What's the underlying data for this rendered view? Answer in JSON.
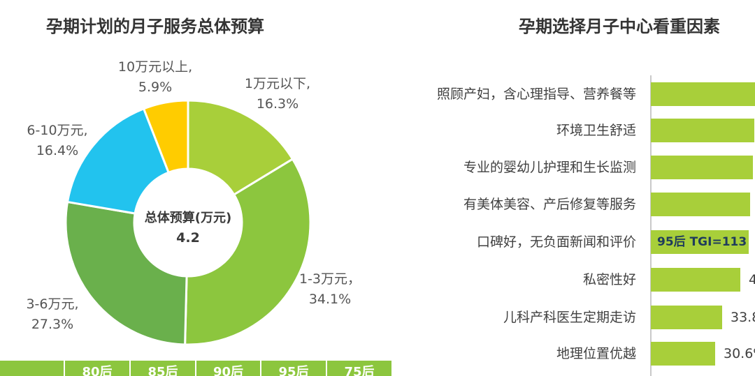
{
  "chart_data": [
    {
      "type": "pie",
      "title": "孕期计划的月子服务总体预算",
      "center_label": "总体预算(万元)",
      "center_value": "4.2",
      "slices": [
        {
          "name": "1万元以下,",
          "value": 16.3,
          "value_label": "16.3%",
          "color": "#a8cf3a"
        },
        {
          "name": "1-3万元，",
          "value": 34.1,
          "value_label": "34.1%",
          "color": "#8cc63e"
        },
        {
          "name": "3-6万元,",
          "value": 27.3,
          "value_label": "27.3%",
          "color": "#6ab04c"
        },
        {
          "name": "6-10万元,",
          "value": 16.4,
          "value_label": "16.4%",
          "color": "#22c3ee"
        },
        {
          "name": "10万元以上,",
          "value": 5.9,
          "value_label": "5.9%",
          "color": "#ffcc00"
        }
      ],
      "bottom_tabs": [
        "",
        "80后",
        "85后",
        "90后",
        "95后",
        "75后"
      ]
    },
    {
      "type": "bar",
      "title": "孕期选择月子中心看重因素",
      "categories": [
        "照顾产妇，含心理指导、营养餐等",
        "环境卫生舒适",
        "专业的婴幼儿护理和生长监测",
        "有美体美容、产后修复等服务",
        "口碑好，无负面新闻和评价",
        "私密性好",
        "儿科产科医生定期走访",
        "地理位置优越"
      ],
      "values": [
        null,
        null,
        null,
        null,
        null,
        null,
        33.8,
        30.6
      ],
      "value_labels": [
        "",
        "",
        "",
        "",
        "",
        "4",
        "33.8",
        "30.6%"
      ],
      "annotation": "95后 TGI=113",
      "bar_color": "#a8cf3a"
    }
  ]
}
